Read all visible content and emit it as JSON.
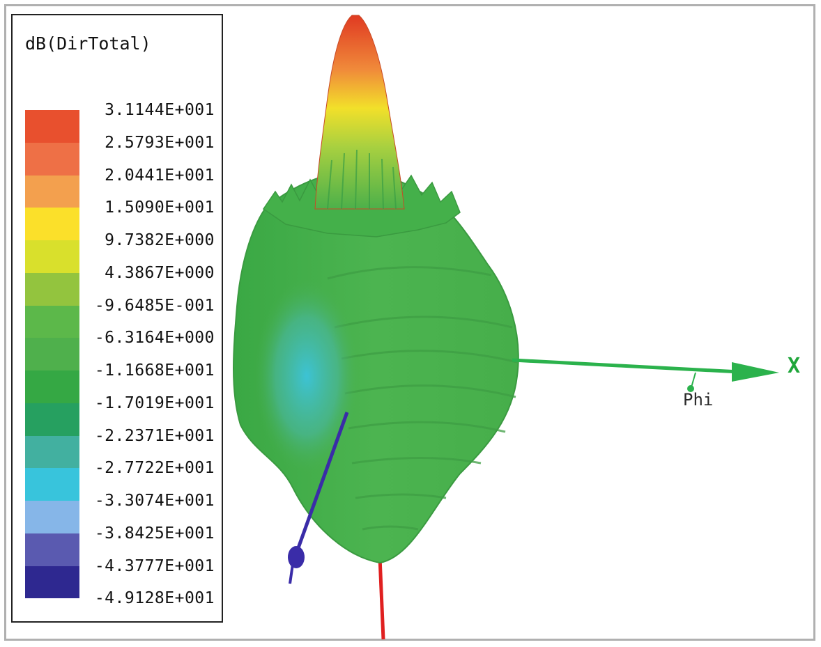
{
  "legend": {
    "title": "dB(DirTotal)",
    "ticks": [
      "3.1144E+001",
      "2.5793E+001",
      "2.0441E+001",
      "1.5090E+001",
      "9.7382E+000",
      "4.3867E+000",
      "-9.6485E-001",
      "-6.3164E+000",
      "-1.1668E+001",
      "-1.7019E+001",
      "-2.2371E+001",
      "-2.7722E+001",
      "-3.3074E+001",
      "-3.8425E+001",
      "-4.3777E+001",
      "-4.9128E+001"
    ],
    "colors": [
      "#e8502e",
      "#ee7046",
      "#f3a04e",
      "#fbe02a",
      "#d9e02c",
      "#93c43e",
      "#5cb84a",
      "#4fb04c",
      "#35a844",
      "#26a060",
      "#42b0a0",
      "#38c4dc",
      "#86b6e8",
      "#5a5ab0",
      "#2e2890"
    ]
  },
  "axes": {
    "x_label": "X",
    "phi_label": "Phi",
    "colors": {
      "x": "#2bb24c",
      "y": "#3a2ca8",
      "z": "#e02020"
    }
  }
}
